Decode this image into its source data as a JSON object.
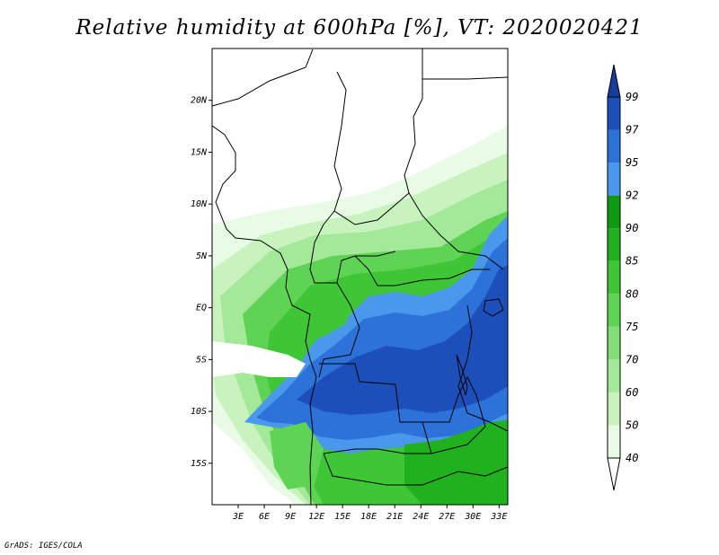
{
  "title": "Relative humidity at 600hPa [%], VT: 2020020421",
  "credit": "GrADS: IGES/COLA",
  "map": {
    "variable": "Relative humidity",
    "level": "600hPa",
    "units": "%",
    "valid_time": "2020020421",
    "lon_range": [
      0,
      34
    ],
    "lat_range": [
      -19,
      25
    ],
    "lat_ticks": [
      {
        "value": 20,
        "label": "20N"
      },
      {
        "value": 15,
        "label": "15N"
      },
      {
        "value": 10,
        "label": "10N"
      },
      {
        "value": 5,
        "label": "5N"
      },
      {
        "value": 0,
        "label": "EQ"
      },
      {
        "value": -5,
        "label": "5S"
      },
      {
        "value": -10,
        "label": "10S"
      },
      {
        "value": -15,
        "label": "15S"
      }
    ],
    "lon_ticks": [
      {
        "value": 3,
        "label": "3E"
      },
      {
        "value": 6,
        "label": "6E"
      },
      {
        "value": 9,
        "label": "9E"
      },
      {
        "value": 12,
        "label": "12E"
      },
      {
        "value": 15,
        "label": "15E"
      },
      {
        "value": 18,
        "label": "18E"
      },
      {
        "value": 21,
        "label": "21E"
      },
      {
        "value": 24,
        "label": "24E"
      },
      {
        "value": 27,
        "label": "27E"
      },
      {
        "value": 30,
        "label": "30E"
      },
      {
        "value": 33,
        "label": "33E"
      }
    ]
  },
  "colorbar": {
    "levels": [
      40,
      50,
      60,
      70,
      75,
      80,
      85,
      90,
      92,
      95,
      97,
      99
    ],
    "colors": [
      "#ffffff",
      "#e8fbe4",
      "#c8f3be",
      "#a4e999",
      "#82de76",
      "#5fd353",
      "#3fc636",
      "#21b01e",
      "#0f9a13",
      "#4a98ec",
      "#2c72d8",
      "#1d4fba",
      "#173d9a"
    ],
    "labels": [
      "40",
      "50",
      "60",
      "70",
      "75",
      "80",
      "85",
      "90",
      "92",
      "95",
      "97",
      "99"
    ]
  }
}
